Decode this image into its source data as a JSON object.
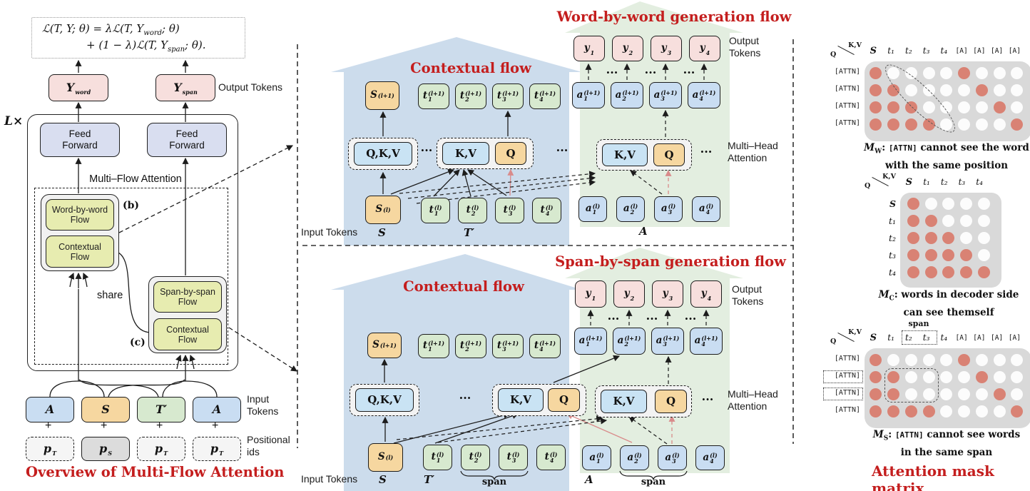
{
  "colors": {
    "accent_red": "#c41e1e",
    "red_arrow": "#d98b8b",
    "mask_dot_on": "#d98274",
    "mask_bg": "#d9d9d9",
    "flow_blue": "#ccdcec",
    "flow_green": "#e3eee0"
  },
  "left": {
    "formula": {
      "l1a": "ℒ(T, Y; θ) = λℒ(T, Y",
      "l1sub": "word",
      "l1b": "; θ)",
      "l2a": "+ (1 − λ)ℒ(T, Y",
      "l2sub": "span",
      "l2b": "; θ)."
    },
    "l_times": "L×",
    "y_word": {
      "b": "Y",
      "sub": "word"
    },
    "y_span": {
      "b": "Y",
      "sub": "span"
    },
    "output_tokens": "Output Tokens",
    "ff": "Feed Forward",
    "mfa": "Multi–Flow Attention",
    "wbw": "Word-by-word Flow",
    "ctx": "Contextual Flow",
    "sbs": "Span-by-span Flow",
    "tag_b": "(b)",
    "tag_c": "(c)",
    "share": "share",
    "inputs": [
      {
        "b": "A"
      },
      {
        "b": "S"
      },
      {
        "b": "T′"
      },
      {
        "b": "A"
      }
    ],
    "plus": "+",
    "pos": [
      {
        "b": "p",
        "sub": "T"
      },
      {
        "b": "p",
        "sub": "S"
      },
      {
        "b": "p",
        "sub": "T"
      },
      {
        "b": "p",
        "sub": "T"
      }
    ],
    "input_tokens": "Input Tokens",
    "positional": "Positional ids",
    "title": "Overview of Multi-Flow Attention"
  },
  "mid_top": {
    "gen_title": "Word-by-word generation flow",
    "ctx_title": "Contextual flow",
    "out_s": {
      "b": "S",
      "sup": "(l+1)"
    },
    "out_t": [
      {
        "b": "t",
        "sub": "1",
        "sup": "(l+1)"
      },
      {
        "b": "t",
        "sub": "2",
        "sup": "(l+1)"
      },
      {
        "b": "t",
        "sub": "3",
        "sup": "(l+1)"
      },
      {
        "b": "t",
        "sub": "4",
        "sup": "(l+1)"
      }
    ],
    "out_a": [
      {
        "b": "a",
        "sub": "1",
        "sup": "(l+1)"
      },
      {
        "b": "a",
        "sub": "2",
        "sup": "(l+1)"
      },
      {
        "b": "a",
        "sub": "3",
        "sup": "(l+1)"
      },
      {
        "b": "a",
        "sub": "4",
        "sup": "(l+1)"
      }
    ],
    "ys": [
      {
        "b": "y",
        "sub": "1"
      },
      {
        "b": "y",
        "sub": "2"
      },
      {
        "b": "y",
        "sub": "3"
      },
      {
        "b": "y",
        "sub": "4"
      }
    ],
    "output_tokens": "Output Tokens",
    "qkv": "Q,K,V",
    "kv": "K,V",
    "q": "Q",
    "ellipsis": "···",
    "mha": "Multi–Head Attention",
    "in_s": {
      "b": "S",
      "sup": "(l)"
    },
    "in_t": [
      {
        "b": "t",
        "sub": "1",
        "sup": "(l)"
      },
      {
        "b": "t",
        "sub": "2",
        "sup": "(l)"
      },
      {
        "b": "t",
        "sub": "3",
        "sup": "(l)"
      },
      {
        "b": "t",
        "sub": "4",
        "sup": "(l)"
      }
    ],
    "in_a": [
      {
        "b": "a",
        "sub": "1",
        "sup": "(l)"
      },
      {
        "b": "a",
        "sub": "2",
        "sup": "(l)"
      },
      {
        "b": "a",
        "sub": "3",
        "sup": "(l)"
      },
      {
        "b": "a",
        "sub": "4",
        "sup": "(l)"
      }
    ],
    "input_tokens": "Input Tokens",
    "s": "S",
    "t": "T′",
    "a": "A"
  },
  "mid_bot": {
    "gen_title": "Span-by-span generation flow",
    "ctx_title": "Contextual flow",
    "out_s": {
      "b": "S",
      "sup": "(l+1)"
    },
    "out_t": [
      {
        "b": "t",
        "sub": "1",
        "sup": "(l+1)"
      },
      {
        "b": "t",
        "sub": "2",
        "sup": "(l+1)"
      },
      {
        "b": "t",
        "sub": "3",
        "sup": "(l+1)"
      },
      {
        "b": "t",
        "sub": "4",
        "sup": "(l+1)"
      }
    ],
    "out_a": [
      {
        "b": "a",
        "sub": "1",
        "sup": "(l+1)"
      },
      {
        "b": "a",
        "sub": "2",
        "sup": "(l+1)"
      },
      {
        "b": "a",
        "sub": "3",
        "sup": "(l+1)"
      },
      {
        "b": "a",
        "sub": "4",
        "sup": "(l+1)"
      }
    ],
    "ys": [
      {
        "b": "y",
        "sub": "1"
      },
      {
        "b": "y",
        "sub": "2"
      },
      {
        "b": "y",
        "sub": "3"
      },
      {
        "b": "y",
        "sub": "4"
      }
    ],
    "output_tokens": "Output Tokens",
    "qkv": "Q,K,V",
    "kv": "K,V",
    "q": "Q",
    "ellipsis": "···",
    "mha": "Multi–Head Attention",
    "in_s": {
      "b": "S",
      "sup": "(l)"
    },
    "in_t": [
      {
        "b": "t",
        "sub": "1",
        "sup": "(l)"
      },
      {
        "b": "t",
        "sub": "2",
        "sup": "(l)"
      },
      {
        "b": "t",
        "sub": "3",
        "sup": "(l)"
      },
      {
        "b": "t",
        "sub": "4",
        "sup": "(l)"
      }
    ],
    "in_a": [
      {
        "b": "a",
        "sub": "1",
        "sup": "(l)"
      },
      {
        "b": "a",
        "sub": "2",
        "sup": "(l)"
      },
      {
        "b": "a",
        "sub": "3",
        "sup": "(l)"
      },
      {
        "b": "a",
        "sub": "4",
        "sup": "(l)"
      }
    ],
    "input_tokens": "Input Tokens",
    "s": "S",
    "t": "T′",
    "a": "A",
    "span1": "span",
    "span2": "span"
  },
  "right": {
    "mask_w": {
      "q": "Q",
      "kv": "K,V",
      "cols": [
        "S",
        "t₁",
        "t₂",
        "t₃",
        "t₄",
        "[A]",
        "[A]",
        "[A]",
        "[A]"
      ],
      "rows": [
        "[ATTN]",
        "[ATTN]",
        "[ATTN]",
        "[ATTN]"
      ],
      "matrix": [
        [
          1,
          0,
          0,
          0,
          0,
          1,
          0,
          0,
          0
        ],
        [
          1,
          1,
          0,
          0,
          0,
          0,
          1,
          0,
          0
        ],
        [
          1,
          1,
          1,
          0,
          0,
          0,
          0,
          1,
          0
        ],
        [
          1,
          1,
          1,
          1,
          0,
          0,
          0,
          0,
          1
        ]
      ],
      "cap_m": "M",
      "cap_sub": "W",
      "cap_sep": ": ",
      "cap_code": "[ATTN]",
      "cap_text": " cannot see the word",
      "cap_line2": "with the same position"
    },
    "mask_c": {
      "q": "Q",
      "kv": "K,V",
      "cols": [
        "S",
        "t₁",
        "t₂",
        "t₃",
        "t₄"
      ],
      "rows": [
        "S",
        "t₁",
        "t₂",
        "t₃",
        "t₄"
      ],
      "matrix": [
        [
          1,
          0,
          0,
          0,
          0
        ],
        [
          1,
          1,
          0,
          0,
          0
        ],
        [
          1,
          1,
          1,
          0,
          0
        ],
        [
          1,
          1,
          1,
          1,
          0
        ],
        [
          1,
          1,
          1,
          1,
          1
        ]
      ],
      "cap_m": "M",
      "cap_sub": "C",
      "cap_sep": ": ",
      "cap_code": "",
      "cap_text": "words in decoder side",
      "cap_line2": "can see themself"
    },
    "mask_s": {
      "q": "Q",
      "kv": "K,V",
      "span": "span",
      "cols": [
        "S",
        "t₁",
        "t₂",
        "t₃",
        "t₄",
        "[A]",
        "[A]",
        "[A]",
        "[A]"
      ],
      "rows": [
        "[ATTN]",
        "[ATTN]",
        "[ATTN]",
        "[ATTN]"
      ],
      "matrix": [
        [
          1,
          0,
          0,
          0,
          0,
          1,
          0,
          0,
          0
        ],
        [
          1,
          1,
          0,
          0,
          0,
          0,
          1,
          0,
          0
        ],
        [
          1,
          1,
          0,
          0,
          0,
          0,
          0,
          1,
          0
        ],
        [
          1,
          1,
          1,
          1,
          0,
          0,
          0,
          0,
          1
        ]
      ],
      "cap_m": "M",
      "cap_sub": "S",
      "cap_sep": ": ",
      "cap_code": "[ATTN]",
      "cap_text": " cannot see words",
      "cap_line2": "in the same span"
    },
    "title": "Attention mask matrix"
  }
}
